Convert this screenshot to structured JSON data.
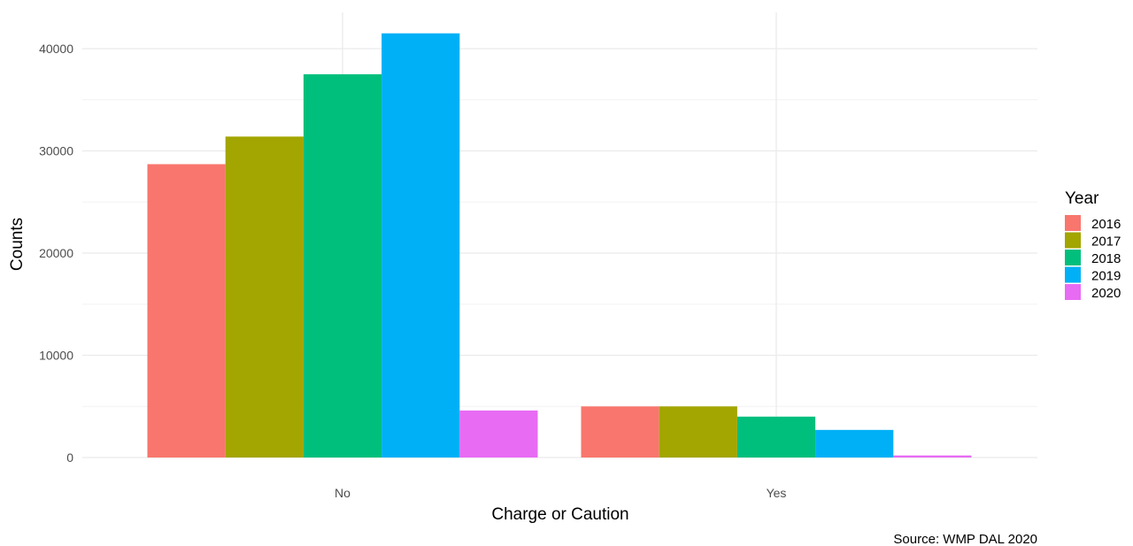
{
  "chart_data": {
    "type": "bar",
    "categories": [
      "No",
      "Yes"
    ],
    "series": [
      {
        "name": "2016",
        "color": "#F8766D",
        "values": [
          28700,
          5000
        ]
      },
      {
        "name": "2017",
        "color": "#A3A500",
        "values": [
          31400,
          5000
        ]
      },
      {
        "name": "2018",
        "color": "#00BF7D",
        "values": [
          37500,
          4000
        ]
      },
      {
        "name": "2019",
        "color": "#00B0F6",
        "values": [
          41500,
          2700
        ]
      },
      {
        "name": "2020",
        "color": "#E76BF3",
        "values": [
          4600,
          200
        ]
      }
    ],
    "xlabel": "Charge or Caution",
    "ylabel": "Counts",
    "ylim": [
      0,
      43000
    ],
    "yticks": [
      0,
      10000,
      20000,
      30000,
      40000
    ],
    "grid": true,
    "legend": {
      "title": "Year",
      "position": "right"
    },
    "caption": "Source: WMP DAL  2020"
  }
}
